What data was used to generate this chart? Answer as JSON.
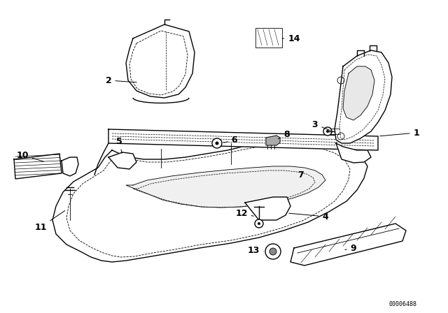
{
  "bg_color": "#ffffff",
  "line_color": "#000000",
  "watermark": "00006488",
  "lw_main": 1.0,
  "lw_thin": 0.6,
  "lw_dash": 0.5,
  "font_size": 9
}
